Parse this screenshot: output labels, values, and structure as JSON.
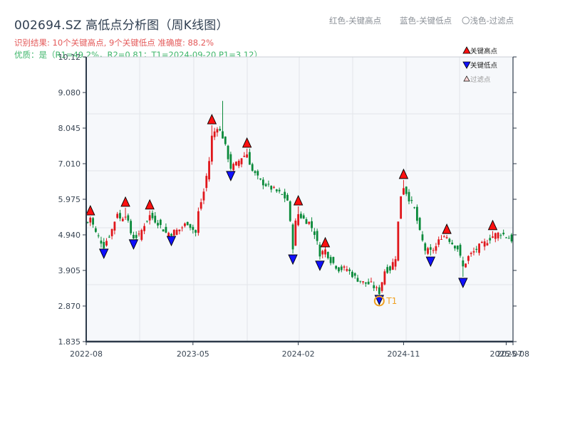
{
  "header": {
    "title": "002694.SZ 高低点分析图（周K线图）",
    "result_line": "识别结果: 10个关键高点, 9个关键低点   准确度: 88.2%",
    "quality_line": "优质：是（R1=49.2%，R2=0.81；T1=2024-09-20 P1=3.12）",
    "legend_red": "红色-关键高点",
    "legend_blue": "蓝色-关键低点",
    "legend_light": "〇浅色-过滤点"
  },
  "chart_data": {
    "type": "candlestick",
    "title": "002694.SZ 高低点分析图（周K线图）",
    "symbol": "002694.SZ",
    "period": "weekly",
    "xlabel": "",
    "ylabel": "",
    "ylim": [
      1.835,
      10.12
    ],
    "y_ticks": [
      "10.12",
      "9.080",
      "8.045",
      "7.010",
      "5.975",
      "4.940",
      "3.905",
      "2.870",
      "1.835"
    ],
    "x_ticks": [
      {
        "label": "2022-08",
        "index": -0.5
      },
      {
        "label": "2023-05",
        "index": 39
      },
      {
        "label": "2024-02",
        "index": 78
      },
      {
        "label": "2024-11",
        "index": 117
      },
      {
        "label": "2025-07",
        "index": 155
      },
      {
        "label": "2025-08",
        "index": 156.5
      }
    ],
    "grid": true,
    "num_candles": 158,
    "colors": {
      "up": "#e0161b",
      "down": "#0a8a3a",
      "high_marker": "#ff1010",
      "low_marker": "#1010ff",
      "t1_ring": "#f0a020",
      "axis": "#2d3a4a",
      "grid": "#e2e5ea",
      "plot_bg": "#f6f8fb"
    },
    "close_keyframes": [
      [
        0,
        5.3
      ],
      [
        1,
        5.45
      ],
      [
        3,
        5.0
      ],
      [
        6,
        4.62
      ],
      [
        9,
        5.1
      ],
      [
        11,
        5.6
      ],
      [
        12,
        5.4
      ],
      [
        14,
        5.55
      ],
      [
        16,
        5.0
      ],
      [
        17,
        4.88
      ],
      [
        19,
        4.9
      ],
      [
        21,
        5.25
      ],
      [
        23,
        5.5
      ],
      [
        26,
        5.3
      ],
      [
        29,
        5.0
      ],
      [
        31,
        5.0
      ],
      [
        34,
        5.1
      ],
      [
        37,
        5.3
      ],
      [
        40,
        5.0
      ],
      [
        41,
        5.6
      ],
      [
        43,
        6.2
      ],
      [
        45,
        7.1
      ],
      [
        46,
        7.8
      ],
      [
        48,
        8.1
      ],
      [
        50,
        7.8
      ],
      [
        52,
        7.2
      ],
      [
        53,
        6.9
      ],
      [
        55,
        7.0
      ],
      [
        57,
        7.2
      ],
      [
        59,
        7.3
      ],
      [
        61,
        6.8
      ],
      [
        64,
        6.5
      ],
      [
        68,
        6.3
      ],
      [
        72,
        6.1
      ],
      [
        74,
        5.95
      ],
      [
        76,
        4.6
      ],
      [
        77,
        5.3
      ],
      [
        78,
        5.55
      ],
      [
        80,
        5.4
      ],
      [
        82,
        5.3
      ],
      [
        84,
        5.0
      ],
      [
        86,
        4.4
      ],
      [
        88,
        4.5
      ],
      [
        90,
        4.2
      ],
      [
        93,
        3.95
      ],
      [
        96,
        3.95
      ],
      [
        99,
        3.7
      ],
      [
        102,
        3.55
      ],
      [
        105,
        3.5
      ],
      [
        107,
        3.35
      ],
      [
        108,
        3.28
      ],
      [
        110,
        3.9
      ],
      [
        112,
        3.95
      ],
      [
        114,
        4.3
      ],
      [
        115,
        5.3
      ],
      [
        116,
        6.1
      ],
      [
        117,
        6.35
      ],
      [
        119,
        6.0
      ],
      [
        121,
        5.7
      ],
      [
        123,
        5.0
      ],
      [
        125,
        4.5
      ],
      [
        127,
        4.45
      ],
      [
        129,
        4.6
      ],
      [
        131,
        4.9
      ],
      [
        133,
        4.9
      ],
      [
        135,
        4.7
      ],
      [
        137,
        4.55
      ],
      [
        139,
        4.0
      ],
      [
        141,
        4.3
      ],
      [
        143,
        4.45
      ],
      [
        145,
        4.6
      ],
      [
        147,
        4.7
      ],
      [
        149,
        4.85
      ],
      [
        151,
        4.95
      ],
      [
        153,
        5.0
      ],
      [
        155,
        4.9
      ],
      [
        157,
        4.8
      ]
    ],
    "key_highs": [
      {
        "index": 1,
        "price": 5.5
      },
      {
        "index": 14,
        "price": 5.75
      },
      {
        "index": 23,
        "price": 5.67
      },
      {
        "index": 46,
        "price": 8.15
      },
      {
        "index": 59,
        "price": 7.47
      },
      {
        "index": 78,
        "price": 5.79
      },
      {
        "index": 88,
        "price": 4.57
      },
      {
        "index": 117,
        "price": 6.56
      },
      {
        "index": 133,
        "price": 4.96
      },
      {
        "index": 150,
        "price": 5.07
      }
    ],
    "key_lows": [
      {
        "index": 6,
        "price": 4.55
      },
      {
        "index": 17,
        "price": 4.82
      },
      {
        "index": 31,
        "price": 4.92
      },
      {
        "index": 53,
        "price": 6.81
      },
      {
        "index": 76,
        "price": 4.38
      },
      {
        "index": 86,
        "price": 4.2
      },
      {
        "index": 108,
        "price": 3.12,
        "label": "T1",
        "date": "2024-09-20"
      },
      {
        "index": 127,
        "price": 4.32
      },
      {
        "index": 139,
        "price": 3.7
      }
    ],
    "spike_high": {
      "index": 50,
      "price": 8.84
    },
    "legend": {
      "position": "upper-right",
      "entries": [
        "关键高点",
        "关键低点",
        "过滤点"
      ]
    },
    "t1_label": "T1",
    "summary": {
      "key_highs": 10,
      "key_lows": 9,
      "accuracy": "88.2%",
      "quality": "是",
      "R1": "49.2%",
      "R2": "0.81",
      "T1": "2024-09-20",
      "P1": "3.12"
    }
  }
}
